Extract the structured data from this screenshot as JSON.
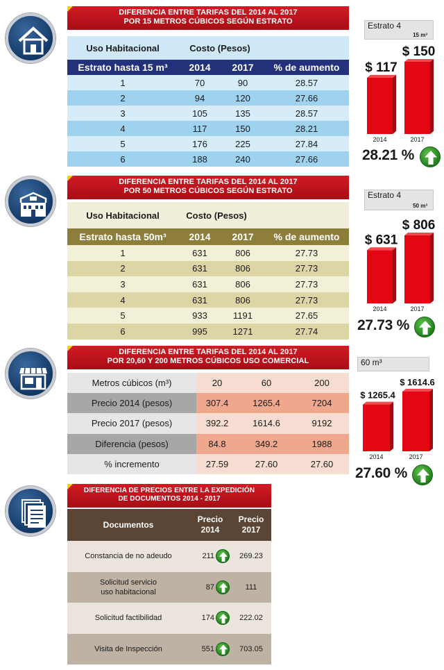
{
  "section1": {
    "banner": [
      "DIFERENCIA ENTRE TARIFAS DEL 2014 AL 2017",
      "POR 15 METROS CÚBICOS SEGÚN ESTRATO"
    ],
    "group_label": "Uso Habitacional",
    "cost_label": "Costo (Pesos)",
    "headers": [
      "Estrato hasta 15 m³",
      "2014",
      "2017",
      "% de aumento"
    ],
    "rows": [
      [
        "1",
        "70",
        "90",
        "28.57"
      ],
      [
        "2",
        "94",
        "120",
        "27.66"
      ],
      [
        "3",
        "105",
        "135",
        "28.57"
      ],
      [
        "4",
        "117",
        "150",
        "28.21"
      ],
      [
        "5",
        "176",
        "225",
        "27.84"
      ],
      [
        "6",
        "188",
        "240",
        "27.66"
      ]
    ]
  },
  "section2": {
    "banner": [
      "DIFERENCIA ENTRE TARIFAS DEL 2014 AL 2017",
      "POR 50 METROS CÚBICOS SEGÚN ESTRATO"
    ],
    "group_label": "Uso Habitacional",
    "cost_label": "Costo (Pesos)",
    "headers": [
      "Estrato hasta 50m³",
      "2014",
      "2017",
      "% de aumento"
    ],
    "rows": [
      [
        "1",
        "631",
        "806",
        "27.73"
      ],
      [
        "2",
        "631",
        "806",
        "27.73"
      ],
      [
        "3",
        "631",
        "806",
        "27.73"
      ],
      [
        "4",
        "631",
        "806",
        "27.73"
      ],
      [
        "5",
        "933",
        "1191",
        "27.65"
      ],
      [
        "6",
        "995",
        "1271",
        "27.74"
      ]
    ]
  },
  "section3": {
    "banner": [
      "DIFERENCIA ENTRE TARIFAS DEL 2014 AL 2017",
      "POR 20,60 Y 200 METROS CÚBICOS USO COMERCIAL"
    ],
    "rows": [
      [
        "Metros cúbicos (m³)",
        "20",
        "60",
        "200"
      ],
      [
        "Precio 2014 (pesos)",
        "307.4",
        "1265.4",
        "7204"
      ],
      [
        "Precio 2017 (pesos)",
        "392.2",
        "1614.6",
        "9192"
      ],
      [
        "Diferencia (pesos)",
        "84.8",
        "349.2",
        "1988"
      ],
      [
        "% incremento",
        "27.59",
        "27.60",
        "27.60"
      ]
    ]
  },
  "section4": {
    "banner": [
      "DIFERENCIA DE PRECIOS ENTRE LA EXPEDICIÓN",
      "DE DOCUMENTOS 2014 - 2017"
    ],
    "headers": [
      "Documentos",
      "Precio\n2014",
      "Precio\n2017"
    ],
    "rows": [
      [
        "Constancia de no adeudo",
        "211",
        "269.23"
      ],
      [
        "Solicitud servicio\nuso habitacional",
        "87",
        "111"
      ],
      [
        "Solicitud factibilidad",
        "174",
        "222.02"
      ],
      [
        "Visita de Inspección",
        "551",
        "703.05"
      ]
    ]
  },
  "chart_data": [
    {
      "type": "bar",
      "tag": "Estrato 4",
      "tag_sub": "15 m³",
      "categories": [
        "2014",
        "2017"
      ],
      "values": [
        117,
        150
      ],
      "value_labels": [
        "$ 117",
        "$ 150"
      ],
      "ylim": [
        0,
        150
      ],
      "increase": "28.21 %",
      "color": "#e30613"
    },
    {
      "type": "bar",
      "tag": "Estrato 4",
      "tag_sub": "50 m³",
      "categories": [
        "2014",
        "2017"
      ],
      "values": [
        631,
        806
      ],
      "value_labels": [
        "$ 631",
        "$ 806"
      ],
      "ylim": [
        0,
        806
      ],
      "increase": "27.73 %",
      "color": "#e30613"
    },
    {
      "type": "bar",
      "tag": "60 m³",
      "tag_sub": "",
      "categories": [
        "2014",
        "2017"
      ],
      "values": [
        1265.4,
        1614.6
      ],
      "value_labels": [
        "$ 1265.4",
        "$ 1614.6"
      ],
      "ylim": [
        0,
        1614.6
      ],
      "increase": "27.60 %",
      "color": "#e30613"
    }
  ]
}
